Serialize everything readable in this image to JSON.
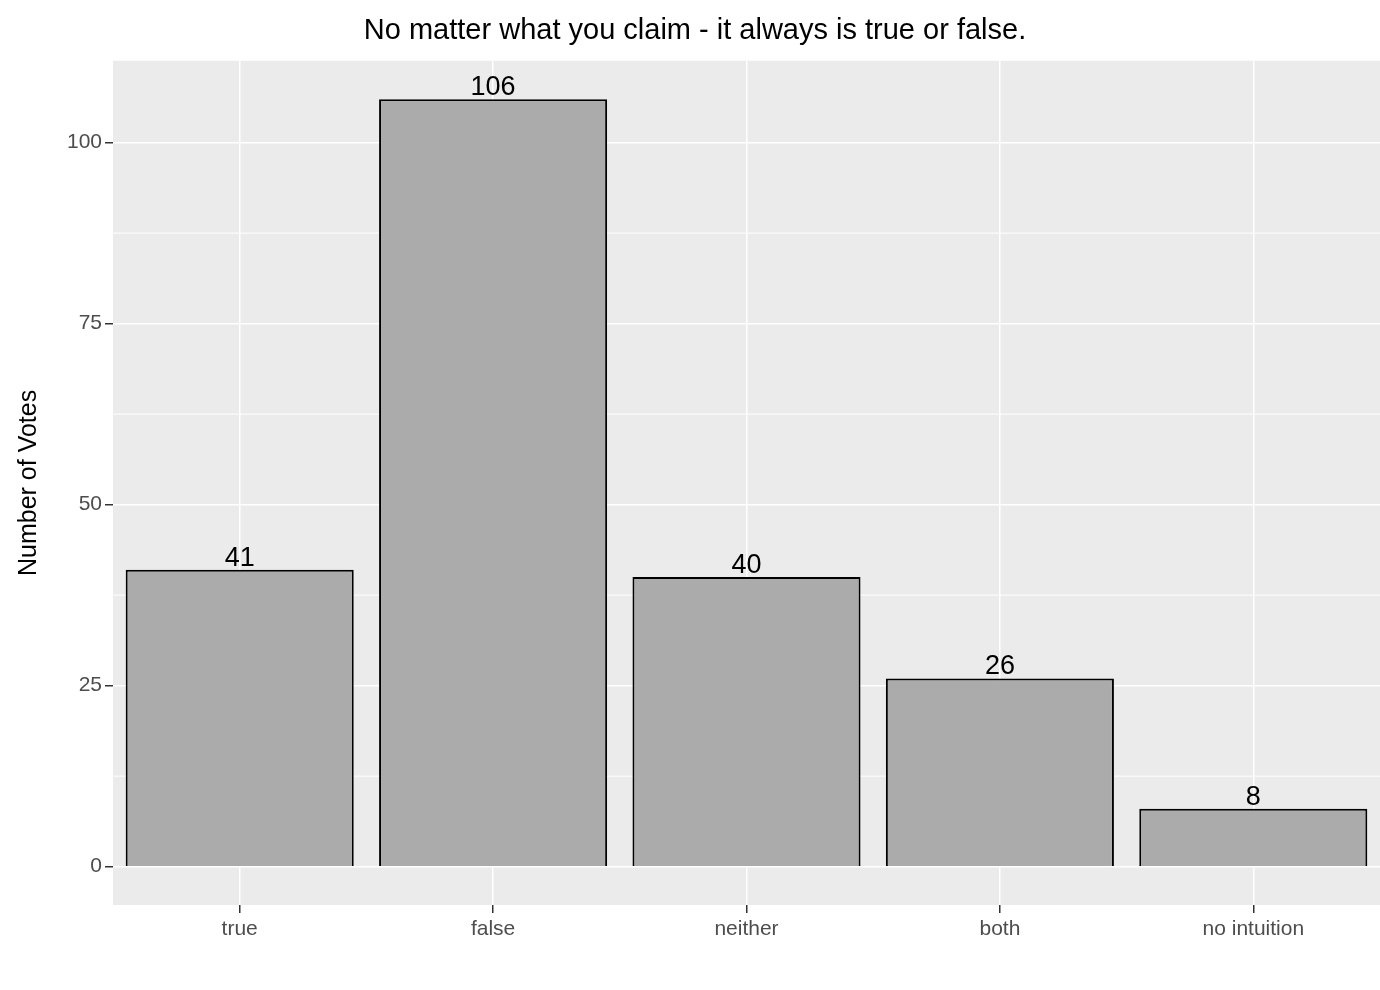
{
  "chart_data": {
    "type": "bar",
    "title": "No matter what you claim - it always is true or false.",
    "ylabel": "Number of Votes",
    "categories": [
      "true",
      "false",
      "neither",
      "both",
      "no intuition"
    ],
    "values": [
      41,
      106,
      40,
      26,
      8
    ],
    "color": "#ababab",
    "ylim": [
      -5.3,
      111.3
    ],
    "yticks": [
      0,
      25,
      50,
      75,
      100
    ],
    "grid": true,
    "data_labels": true,
    "legend": false
  }
}
